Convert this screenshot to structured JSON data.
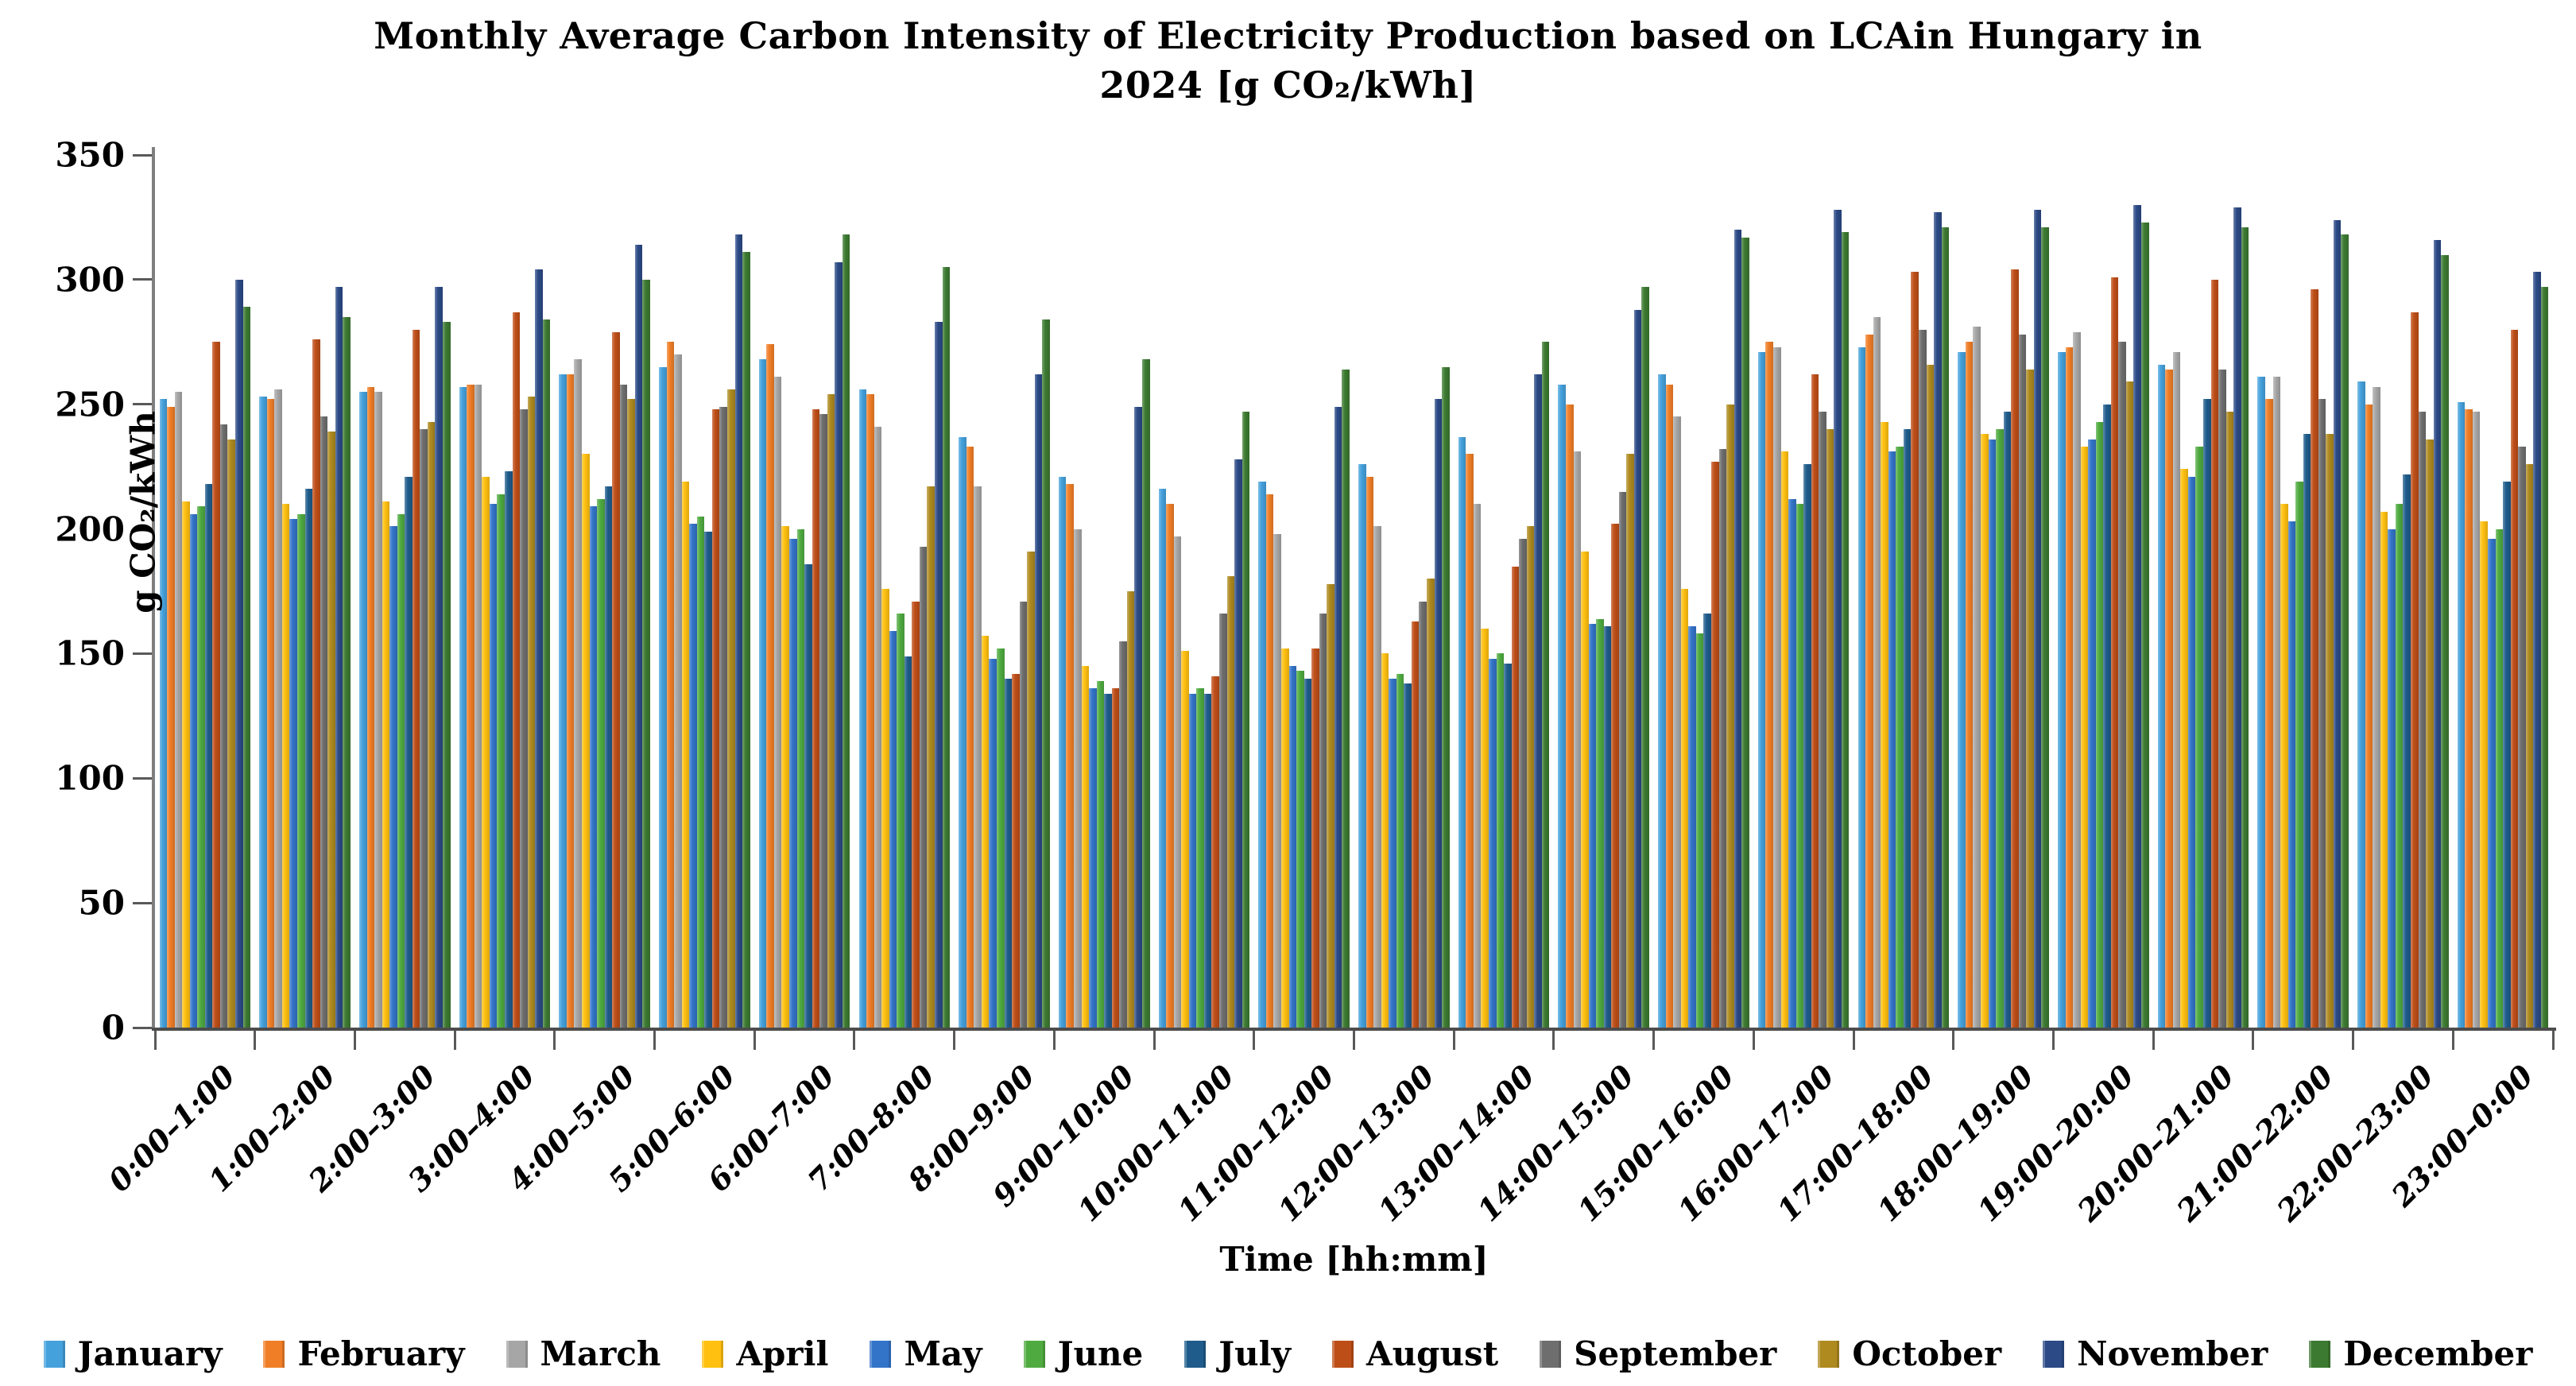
{
  "title": {
    "line1": "Monthly Average Carbon Intensity of Electricity Production based on LCAin Hungary in",
    "line2": "2024 [g CO₂/kWh]"
  },
  "axes": {
    "x_title": "Time [hh:mm]",
    "y_title": "g CO₂/kWh"
  },
  "chart_data": {
    "type": "bar",
    "title": "Monthly Average Carbon Intensity of Electricity Production based on LCAin Hungary in 2024 [g CO₂/kWh]",
    "xlabel": "Time [hh:mm]",
    "ylabel": "g CO₂/kWh",
    "ylim": [
      0,
      350
    ],
    "yticks": [
      0,
      50,
      100,
      150,
      200,
      250,
      300,
      350
    ],
    "grid": false,
    "legend_position": "bottom",
    "categories": [
      "0:00–1:00",
      "1:00–2:00",
      "2:00–3:00",
      "3:00–4:00",
      "4:00–5:00",
      "5:00–6:00",
      "6:00–7:00",
      "7:00–8:00",
      "8:00–9:00",
      "9:00–10:00",
      "10:00–11:00",
      "11:00–12:00",
      "12:00–13:00",
      "13:00–14:00",
      "14:00–15:00",
      "15:00–16:00",
      "16:00–17:00",
      "17:00–18:00",
      "18:00–19:00",
      "19:00–20:00",
      "20:00–21:00",
      "21:00–22:00",
      "22:00–23:00",
      "23:00–0:00"
    ],
    "series": [
      {
        "name": "January",
        "color": "#45A1DC",
        "values": [
          252,
          253,
          255,
          257,
          262,
          265,
          268,
          256,
          237,
          221,
          216,
          219,
          226,
          237,
          258,
          262,
          271,
          273,
          271,
          271,
          266,
          261,
          259,
          251
        ]
      },
      {
        "name": "February",
        "color": "#F07E27",
        "values": [
          249,
          252,
          257,
          258,
          262,
          275,
          274,
          254,
          233,
          218,
          210,
          214,
          221,
          230,
          250,
          258,
          275,
          278,
          275,
          273,
          264,
          252,
          250,
          248
        ]
      },
      {
        "name": "March",
        "color": "#A6A6A6",
        "values": [
          255,
          256,
          255,
          258,
          268,
          270,
          261,
          241,
          217,
          200,
          197,
          198,
          201,
          210,
          231,
          245,
          273,
          285,
          281,
          279,
          271,
          261,
          257,
          247
        ]
      },
      {
        "name": "April",
        "color": "#FFC010",
        "values": [
          211,
          210,
          211,
          221,
          230,
          219,
          201,
          176,
          157,
          145,
          151,
          152,
          150,
          160,
          191,
          176,
          231,
          243,
          238,
          233,
          224,
          210,
          207,
          203
        ]
      },
      {
        "name": "May",
        "color": "#3374C9",
        "values": [
          206,
          204,
          201,
          210,
          209,
          202,
          196,
          159,
          148,
          136,
          134,
          145,
          140,
          148,
          162,
          161,
          212,
          231,
          236,
          236,
          221,
          203,
          200,
          196
        ]
      },
      {
        "name": "June",
        "color": "#4FAB40",
        "values": [
          209,
          206,
          206,
          214,
          212,
          205,
          200,
          166,
          152,
          139,
          136,
          143,
          142,
          150,
          164,
          158,
          210,
          233,
          240,
          243,
          233,
          219,
          210,
          200
        ]
      },
      {
        "name": "July",
        "color": "#1F5C8B",
        "values": [
          218,
          216,
          221,
          223,
          217,
          199,
          186,
          149,
          140,
          134,
          134,
          140,
          138,
          146,
          161,
          166,
          226,
          240,
          247,
          250,
          252,
          238,
          222,
          219
        ]
      },
      {
        "name": "August",
        "color": "#BE4E18",
        "values": [
          275,
          276,
          280,
          287,
          279,
          248,
          248,
          171,
          142,
          136,
          141,
          152,
          163,
          185,
          202,
          227,
          262,
          303,
          304,
          301,
          300,
          296,
          287,
          280
        ]
      },
      {
        "name": "September",
        "color": "#6E6E6E",
        "values": [
          242,
          245,
          240,
          248,
          258,
          249,
          246,
          193,
          171,
          155,
          166,
          166,
          171,
          196,
          215,
          232,
          247,
          280,
          278,
          275,
          264,
          252,
          247,
          233
        ]
      },
      {
        "name": "October",
        "color": "#AE8A1F",
        "values": [
          236,
          239,
          243,
          253,
          252,
          256,
          254,
          217,
          191,
          175,
          181,
          178,
          180,
          201,
          230,
          250,
          240,
          266,
          264,
          259,
          247,
          238,
          236,
          226
        ]
      },
      {
        "name": "November",
        "color": "#2B4A86",
        "values": [
          300,
          297,
          297,
          304,
          314,
          318,
          307,
          283,
          262,
          249,
          228,
          249,
          252,
          262,
          288,
          320,
          328,
          327,
          328,
          330,
          329,
          324,
          316,
          303
        ]
      },
      {
        "name": "December",
        "color": "#3C7A31",
        "values": [
          289,
          285,
          283,
          284,
          300,
          311,
          318,
          305,
          284,
          268,
          247,
          264,
          265,
          275,
          297,
          317,
          319,
          321,
          321,
          323,
          321,
          318,
          310,
          297
        ]
      }
    ]
  }
}
